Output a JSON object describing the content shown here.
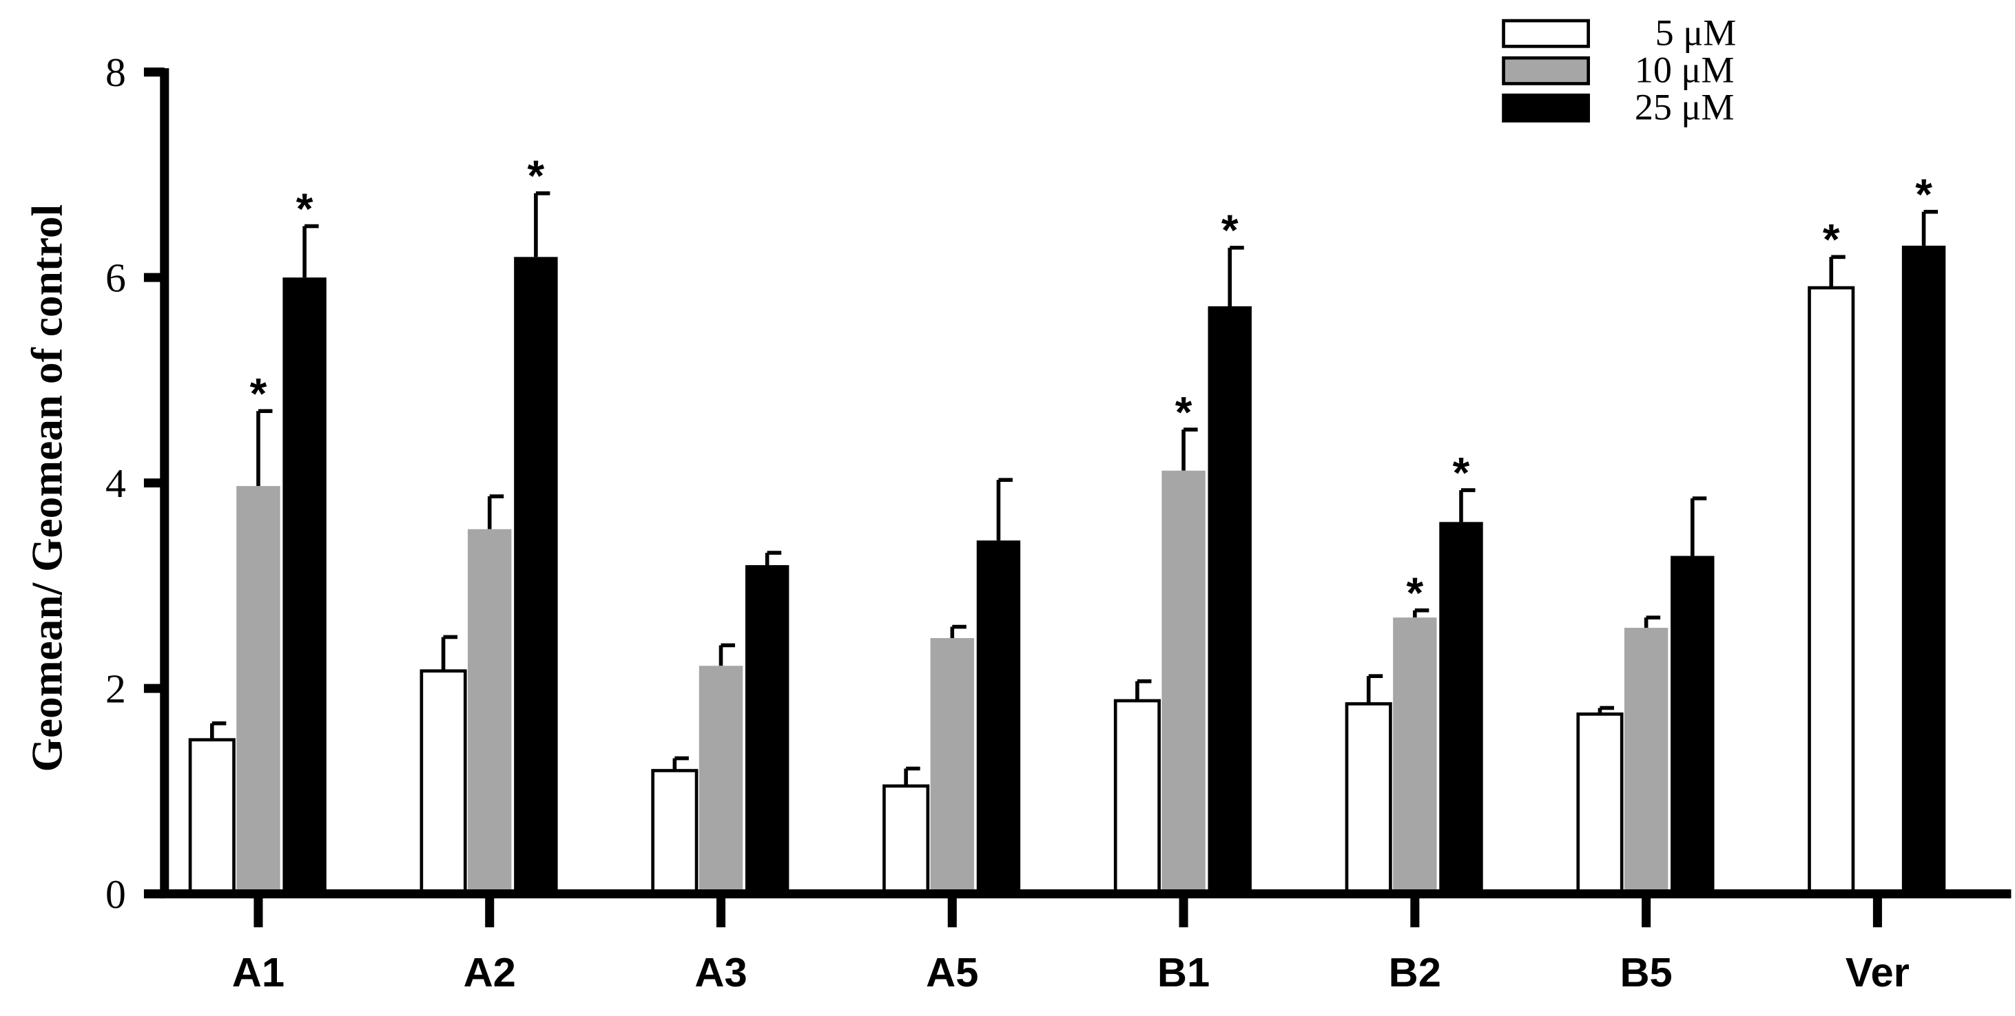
{
  "chart_data": {
    "type": "bar",
    "y_label": "Geomean/ Geomean of control",
    "categories": [
      "A1",
      "A2",
      "A3",
      "A5",
      "B1",
      "B2",
      "B5",
      "Ver"
    ],
    "series": [
      {
        "name": "5 μM",
        "color": "#ffffff",
        "values": [
          1.5,
          2.17,
          1.2,
          1.05,
          1.88,
          1.85,
          1.75,
          5.9
        ],
        "errors": [
          0.16,
          0.33,
          0.12,
          0.17,
          0.19,
          0.27,
          0.06,
          0.3
        ],
        "significance": [
          null,
          null,
          null,
          null,
          null,
          null,
          null,
          "*"
        ]
      },
      {
        "name": "10 μM",
        "color": "#a6a6a6",
        "values": [
          3.97,
          3.55,
          2.22,
          2.49,
          4.12,
          2.69,
          2.59,
          null
        ],
        "errors": [
          0.73,
          0.32,
          0.2,
          0.11,
          0.4,
          0.07,
          0.1,
          null
        ],
        "significance": [
          "*",
          null,
          null,
          null,
          "*",
          "*",
          null,
          null
        ]
      },
      {
        "name": "25 μM",
        "color": "#000000",
        "values": [
          6.0,
          6.2,
          3.2,
          3.44,
          5.72,
          3.62,
          3.29,
          6.31
        ],
        "errors": [
          0.5,
          0.62,
          0.12,
          0.59,
          0.57,
          0.31,
          0.56,
          0.33
        ],
        "significance": [
          "*",
          "*",
          null,
          null,
          "*",
          "*",
          null,
          "*"
        ]
      }
    ],
    "ylim": [
      0,
      8
    ],
    "yticks": [
      0,
      2,
      4,
      6,
      8
    ],
    "legend": "top-right"
  }
}
